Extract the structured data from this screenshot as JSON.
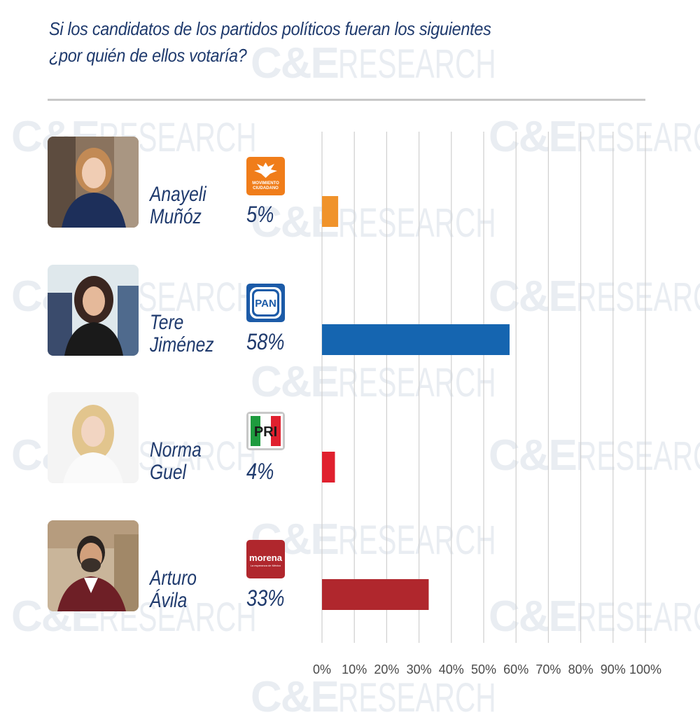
{
  "header": {
    "title_line1": "Si los candidatos de los partidos políticos fueran los siguientes",
    "title_line2": "¿por quién de ellos votaría?"
  },
  "watermark": {
    "text_bold": "C&E",
    "text_thin": "RESEARCH"
  },
  "candidates": [
    {
      "first": "Anayeli",
      "last": "Muñóz",
      "party_logo": "movimiento-ciudadano-logo",
      "party_logo_text": "MOVIMIENTO CIUDADANO",
      "percent_label": "5%",
      "color": "#f0932b"
    },
    {
      "first": "Tere",
      "last": "Jiménez",
      "party_logo": "pan-logo",
      "party_logo_text": "PAN",
      "percent_label": "58%",
      "color": "#1565b0"
    },
    {
      "first": "Norma",
      "last": "Guel",
      "party_logo": "pri-logo",
      "party_logo_text": "PRI",
      "percent_label": "4%",
      "color": "#e0202e"
    },
    {
      "first": "Arturo",
      "last": "Ávila",
      "party_logo": "morena-logo",
      "party_logo_text": "morena",
      "party_logo_subtext": "La esperanza de México",
      "percent_label": "33%",
      "color": "#b0272d"
    }
  ],
  "chart_data": {
    "type": "bar",
    "orientation": "horizontal",
    "title": "Si los candidatos de los partidos políticos fueran los siguientes ¿por quién de ellos votaría?",
    "categories": [
      "Anayeli Muñóz",
      "Tere Jiménez",
      "Norma Guel",
      "Arturo Ávila"
    ],
    "values": [
      5,
      58,
      4,
      33
    ],
    "colors": [
      "#f0932b",
      "#1565b0",
      "#e0202e",
      "#b0272d"
    ],
    "xlim": [
      0,
      100
    ],
    "x_ticks": [
      "0%",
      "10%",
      "20%",
      "30%",
      "40%",
      "50%",
      "60%",
      "70%",
      "80%",
      "90%",
      "100%"
    ],
    "grid": "vertical",
    "legend": "none"
  }
}
